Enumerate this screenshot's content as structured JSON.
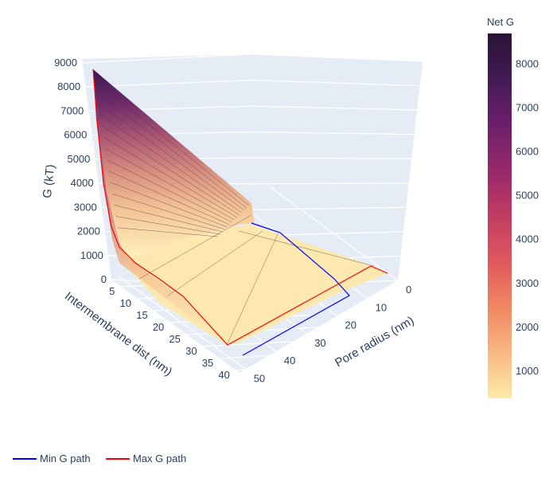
{
  "chart_data": {
    "type": "surface3d",
    "axes": {
      "z": {
        "label": "G (kT)",
        "ticks": [
          "0",
          "1000",
          "2000",
          "3000",
          "4000",
          "5000",
          "6000",
          "7000",
          "8000",
          "9000"
        ],
        "range": [
          0,
          9000
        ]
      },
      "x": {
        "label": "Intermembrane dist (nm)",
        "ticks": [
          "5",
          "10",
          "15",
          "20",
          "25",
          "30",
          "35",
          "40"
        ],
        "range": [
          2,
          41
        ]
      },
      "y": {
        "label": "Pore radius (nm)",
        "ticks": [
          "0",
          "10",
          "20",
          "30",
          "40",
          "50"
        ],
        "range": [
          0,
          52
        ]
      }
    },
    "colorbar": {
      "title": "Net G",
      "ticks": [
        "1000",
        "2000",
        "3000",
        "4000",
        "5000",
        "6000",
        "7000",
        "8000"
      ],
      "range": [
        380,
        8700
      ],
      "colorscale": [
        "#fde9a9",
        "#f8b883",
        "#f08763",
        "#e0585c",
        "#c13b63",
        "#97296b",
        "#6c1e6a",
        "#421a55",
        "#2a1334"
      ]
    },
    "surface_description_samples": {
      "x_intermembrane": [
        2,
        3,
        4,
        5,
        6,
        8,
        10,
        13,
        16,
        20,
        25,
        30,
        35,
        40
      ],
      "corner_peak_G": 8700,
      "floor_G": 380
    },
    "series": [
      {
        "name": "Min G path",
        "color": "#0000ff"
      },
      {
        "name": "Max G path",
        "color": "#ff0000"
      }
    ]
  },
  "legend": {
    "items": [
      {
        "label": "Min G path",
        "color": "#0000ff"
      },
      {
        "label": "Max G path",
        "color": "#ff0000"
      }
    ]
  }
}
